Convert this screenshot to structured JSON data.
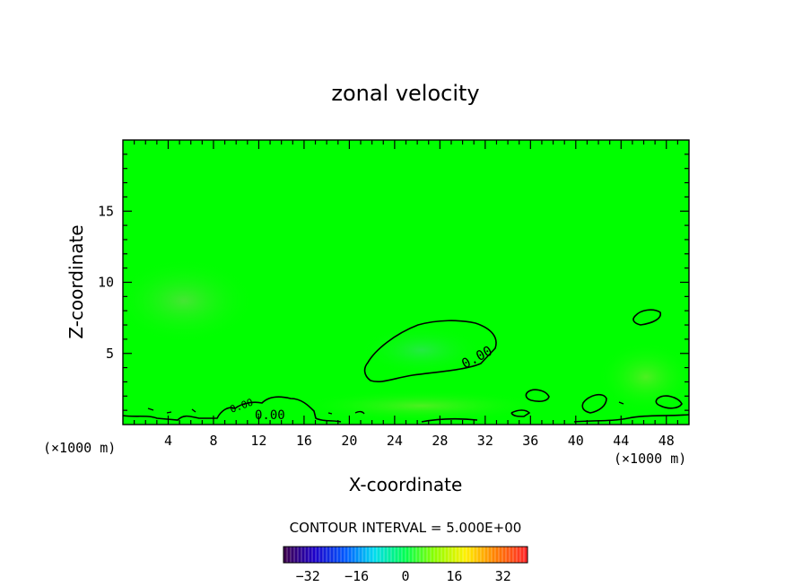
{
  "chart_data": {
    "type": "contour",
    "title": "zonal velocity",
    "xlabel": "X-coordinate",
    "ylabel": "Z-coordinate",
    "x_unit_left": "(×1000 m)",
    "x_unit_right": "(×1000 m)",
    "xlim": [
      0,
      50
    ],
    "ylim": [
      0,
      20
    ],
    "x_ticks": [
      4,
      8,
      12,
      16,
      20,
      24,
      28,
      32,
      36,
      40,
      44,
      48
    ],
    "y_ticks": [
      5,
      10,
      15
    ],
    "contour_labels": [
      {
        "text": "0.00",
        "x": 31.5,
        "y": 4.4
      },
      {
        "text": "0.00",
        "x": 13.0,
        "y": 0.7
      },
      {
        "text": "0.00",
        "x": 10.5,
        "y": 1.2
      }
    ],
    "contour_interval_text": "CONTOUR INTERVAL = 5.000E+00",
    "colorbar": {
      "min": -40,
      "max": 40,
      "tick_values": [
        -32,
        -16,
        0,
        16,
        32
      ],
      "tick_labels": [
        "−32",
        "−16",
        "0",
        "16",
        "32"
      ]
    },
    "field_background_color": "#00ff00"
  }
}
